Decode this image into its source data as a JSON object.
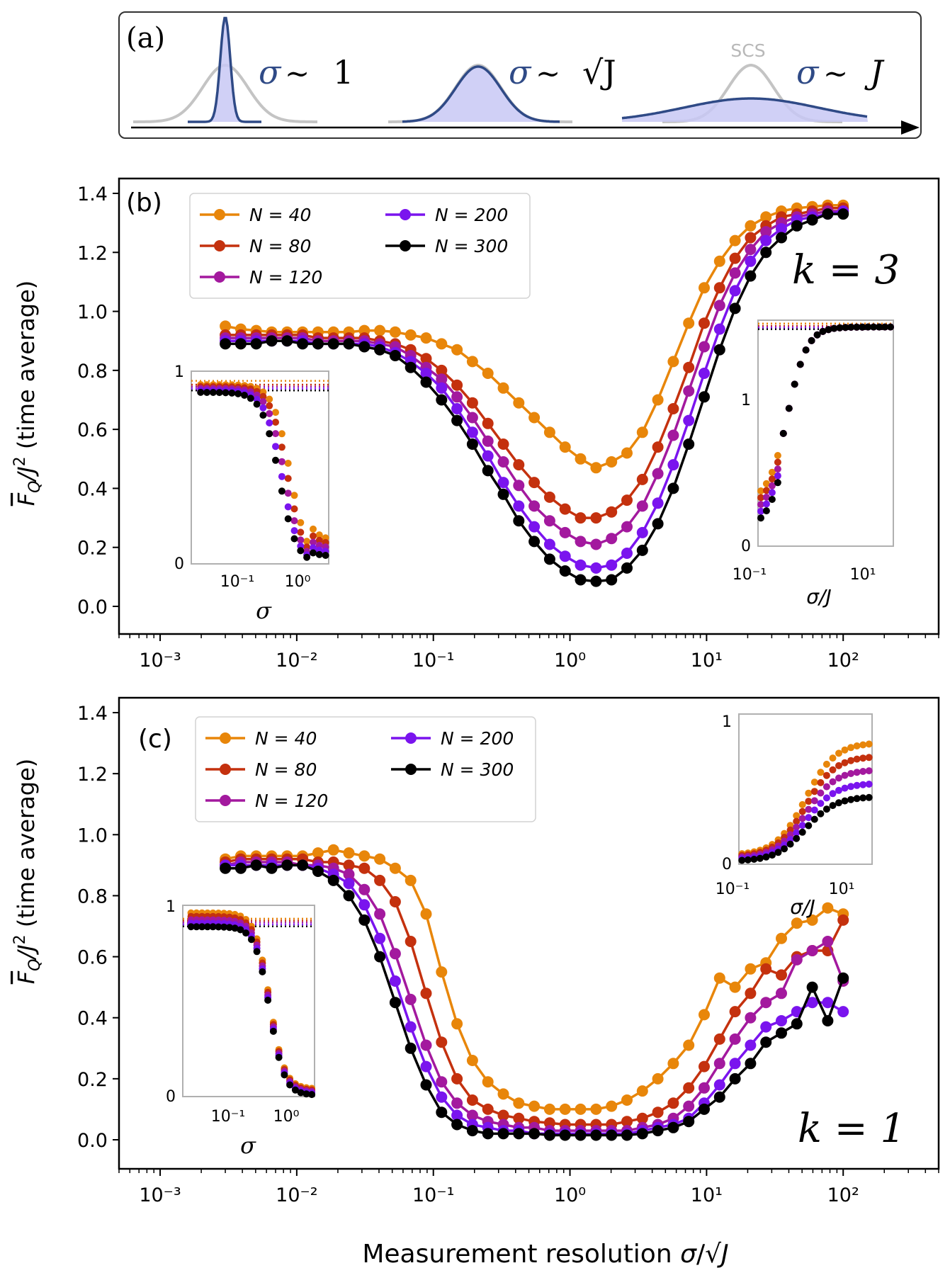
{
  "colors": {
    "N40": "#e8860a",
    "N80": "#c4310e",
    "N120": "#a3199e",
    "N200": "#7a14ee",
    "N300": "#000000",
    "sketch_line": "#2f4a86",
    "sketch_fill": "#c8c8f4",
    "scs_gray": "#c4c4c4",
    "inset_frame": "#b0b0b0"
  },
  "panel_a": {
    "label": "(a)",
    "scs_label": "SCS",
    "sketches": [
      {
        "sigma": "σ",
        "relation": "∼",
        "scale": "1"
      },
      {
        "sigma": "σ",
        "relation": "∼",
        "scale": "√J"
      },
      {
        "sigma": "σ",
        "relation": "∼",
        "scale": "J"
      }
    ]
  },
  "y_axis_label": {
    "symbol": "F",
    "subscript": "Q",
    "rest": "/J",
    "power": "2",
    "note": "(time average)"
  },
  "x_axis_label": {
    "text": "Measurement resolution",
    "sigma": "σ",
    "slash": "/",
    "root": "√J"
  },
  "chart_data": [
    {
      "id": "b",
      "type": "line",
      "panel_label": "(b)",
      "k_label": "k = 3",
      "xscale": "log",
      "xlim": [
        0.0005,
        500
      ],
      "ylim": [
        -0.1,
        1.45
      ],
      "xticks": [
        0.001,
        0.01,
        0.1,
        1,
        10,
        100
      ],
      "xtick_labels": [
        "10⁻³",
        "10⁻²",
        "10⁻¹",
        "10⁰",
        "10¹",
        "10²"
      ],
      "yticks": [
        0.0,
        0.2,
        0.4,
        0.6,
        0.8,
        1.0,
        1.2,
        1.4
      ],
      "ytick_labels": [
        "0.0",
        "0.2",
        "0.4",
        "0.6",
        "0.8",
        "1.0",
        "1.2",
        "1.4"
      ],
      "legend": {
        "placement": "upper-left",
        "entries": [
          "N = 40",
          "N = 80",
          "N = 120",
          "N = 200",
          "N = 300"
        ]
      },
      "x_range": [
        0.003,
        100
      ],
      "x_points": 41,
      "series": [
        {
          "name": "N = 40",
          "key": "N40",
          "values": [
            0.95,
            0.94,
            0.935,
            0.93,
            0.93,
            0.93,
            0.93,
            0.93,
            0.93,
            0.935,
            0.935,
            0.93,
            0.92,
            0.91,
            0.89,
            0.87,
            0.83,
            0.79,
            0.74,
            0.69,
            0.64,
            0.59,
            0.54,
            0.5,
            0.47,
            0.49,
            0.52,
            0.59,
            0.7,
            0.83,
            0.96,
            1.08,
            1.17,
            1.24,
            1.29,
            1.32,
            1.34,
            1.35,
            1.355,
            1.36,
            1.36
          ]
        },
        {
          "name": "N = 80",
          "key": "N80",
          "values": [
            0.92,
            0.92,
            0.92,
            0.92,
            0.92,
            0.92,
            0.91,
            0.91,
            0.91,
            0.91,
            0.9,
            0.89,
            0.87,
            0.84,
            0.8,
            0.75,
            0.69,
            0.62,
            0.55,
            0.48,
            0.42,
            0.37,
            0.33,
            0.3,
            0.3,
            0.32,
            0.36,
            0.43,
            0.54,
            0.67,
            0.81,
            0.96,
            1.08,
            1.18,
            1.25,
            1.29,
            1.32,
            1.33,
            1.34,
            1.35,
            1.35
          ]
        },
        {
          "name": "N = 120",
          "key": "N120",
          "values": [
            0.91,
            0.91,
            0.91,
            0.91,
            0.91,
            0.91,
            0.9,
            0.9,
            0.9,
            0.9,
            0.89,
            0.88,
            0.85,
            0.81,
            0.77,
            0.71,
            0.64,
            0.56,
            0.49,
            0.41,
            0.34,
            0.29,
            0.25,
            0.22,
            0.21,
            0.23,
            0.27,
            0.34,
            0.45,
            0.58,
            0.73,
            0.88,
            1.02,
            1.13,
            1.21,
            1.27,
            1.3,
            1.32,
            1.33,
            1.34,
            1.34
          ]
        },
        {
          "name": "N = 200",
          "key": "N200",
          "values": [
            0.9,
            0.9,
            0.9,
            0.9,
            0.9,
            0.9,
            0.89,
            0.89,
            0.89,
            0.89,
            0.88,
            0.86,
            0.83,
            0.79,
            0.74,
            0.67,
            0.59,
            0.51,
            0.42,
            0.34,
            0.27,
            0.21,
            0.17,
            0.14,
            0.13,
            0.14,
            0.18,
            0.25,
            0.35,
            0.48,
            0.63,
            0.79,
            0.94,
            1.07,
            1.17,
            1.24,
            1.28,
            1.31,
            1.32,
            1.33,
            1.34
          ]
        },
        {
          "name": "N = 300",
          "key": "N300",
          "values": [
            0.89,
            0.89,
            0.89,
            0.9,
            0.9,
            0.89,
            0.89,
            0.89,
            0.89,
            0.88,
            0.87,
            0.85,
            0.81,
            0.76,
            0.7,
            0.63,
            0.55,
            0.46,
            0.38,
            0.29,
            0.22,
            0.16,
            0.12,
            0.09,
            0.085,
            0.09,
            0.13,
            0.19,
            0.28,
            0.4,
            0.55,
            0.71,
            0.87,
            1.01,
            1.12,
            1.2,
            1.25,
            1.29,
            1.31,
            1.33,
            1.33
          ]
        }
      ]
    },
    {
      "id": "c",
      "type": "line",
      "panel_label": "(c)",
      "k_label": "k = 1",
      "xscale": "log",
      "xlim": [
        0.0005,
        500
      ],
      "ylim": [
        -0.1,
        1.45
      ],
      "xticks": [
        0.001,
        0.01,
        0.1,
        1,
        10,
        100
      ],
      "xtick_labels": [
        "10⁻³",
        "10⁻²",
        "10⁻¹",
        "10⁰",
        "10¹",
        "10²"
      ],
      "yticks": [
        0.0,
        0.2,
        0.4,
        0.6,
        0.8,
        1.0,
        1.2,
        1.4
      ],
      "ytick_labels": [
        "0.0",
        "0.2",
        "0.4",
        "0.6",
        "0.8",
        "1.0",
        "1.2",
        "1.4"
      ],
      "legend": {
        "placement": "upper-left",
        "entries": [
          "N = 40",
          "N = 80",
          "N = 120",
          "N = 200",
          "N = 300"
        ]
      },
      "x_range": [
        0.003,
        100
      ],
      "x_points": 41,
      "series": [
        {
          "name": "N = 40",
          "key": "N40",
          "values": [
            0.92,
            0.93,
            0.93,
            0.93,
            0.93,
            0.93,
            0.94,
            0.95,
            0.94,
            0.93,
            0.92,
            0.89,
            0.85,
            0.74,
            0.55,
            0.38,
            0.26,
            0.19,
            0.15,
            0.12,
            0.11,
            0.1,
            0.1,
            0.1,
            0.1,
            0.11,
            0.13,
            0.16,
            0.2,
            0.25,
            0.31,
            0.41,
            0.53,
            0.5,
            0.56,
            0.58,
            0.66,
            0.71,
            0.72,
            0.76,
            0.74
          ]
        },
        {
          "name": "N = 80",
          "key": "N80",
          "values": [
            0.91,
            0.92,
            0.92,
            0.92,
            0.92,
            0.92,
            0.91,
            0.91,
            0.9,
            0.89,
            0.85,
            0.78,
            0.65,
            0.48,
            0.32,
            0.2,
            0.13,
            0.1,
            0.08,
            0.07,
            0.06,
            0.055,
            0.05,
            0.05,
            0.05,
            0.05,
            0.06,
            0.07,
            0.09,
            0.12,
            0.17,
            0.24,
            0.33,
            0.42,
            0.48,
            0.56,
            0.54,
            0.6,
            0.62,
            0.62,
            0.72
          ]
        },
        {
          "name": "N = 120",
          "key": "N120",
          "values": [
            0.9,
            0.91,
            0.91,
            0.91,
            0.91,
            0.9,
            0.9,
            0.89,
            0.87,
            0.82,
            0.74,
            0.61,
            0.46,
            0.31,
            0.19,
            0.12,
            0.08,
            0.06,
            0.05,
            0.04,
            0.04,
            0.03,
            0.03,
            0.03,
            0.03,
            0.03,
            0.03,
            0.04,
            0.05,
            0.07,
            0.11,
            0.17,
            0.25,
            0.33,
            0.4,
            0.45,
            0.48,
            0.59,
            0.62,
            0.65,
            0.52
          ]
        },
        {
          "name": "N = 200",
          "key": "N200",
          "values": [
            0.9,
            0.9,
            0.9,
            0.9,
            0.9,
            0.9,
            0.89,
            0.87,
            0.84,
            0.77,
            0.66,
            0.52,
            0.37,
            0.24,
            0.14,
            0.08,
            0.05,
            0.04,
            0.03,
            0.03,
            0.02,
            0.02,
            0.02,
            0.02,
            0.02,
            0.02,
            0.02,
            0.03,
            0.04,
            0.05,
            0.07,
            0.12,
            0.18,
            0.25,
            0.31,
            0.37,
            0.39,
            0.42,
            0.45,
            0.45,
            0.42
          ]
        },
        {
          "name": "N = 300",
          "key": "N300",
          "values": [
            0.89,
            0.89,
            0.9,
            0.89,
            0.9,
            0.9,
            0.88,
            0.85,
            0.8,
            0.72,
            0.6,
            0.45,
            0.3,
            0.18,
            0.09,
            0.05,
            0.03,
            0.02,
            0.02,
            0.02,
            0.02,
            0.015,
            0.015,
            0.015,
            0.015,
            0.015,
            0.015,
            0.02,
            0.03,
            0.04,
            0.06,
            0.1,
            0.14,
            0.2,
            0.25,
            0.32,
            0.35,
            0.38,
            0.5,
            0.39,
            0.53
          ]
        }
      ]
    }
  ],
  "insets": [
    {
      "id": "b-left",
      "panel": "b",
      "xlabel": "σ",
      "xtick_labels": [
        "10⁻¹",
        "10⁰"
      ],
      "ytick_labels": [
        "0",
        "1"
      ],
      "note": "collapse vs σ; curves drop past σ ≈ 0.5"
    },
    {
      "id": "b-right",
      "panel": "b",
      "xlabel": "σ/J",
      "xtick_labels": [
        "10⁻¹",
        "10¹"
      ],
      "ytick_labels": [
        "0",
        "1"
      ],
      "note": "collapse vs σ/J; curves rise to ≈1.3"
    },
    {
      "id": "c-left",
      "panel": "c",
      "xlabel": "σ",
      "xtick_labels": [
        "10⁻¹",
        "10⁰"
      ],
      "ytick_labels": [
        "0",
        "1"
      ],
      "note": "collapse vs σ"
    },
    {
      "id": "c-right",
      "panel": "c",
      "xlabel": "σ/J",
      "xtick_labels": [
        "10⁻¹",
        "10¹"
      ],
      "ytick_labels": [
        "0",
        "1"
      ],
      "note": "collapse vs σ/J"
    }
  ]
}
